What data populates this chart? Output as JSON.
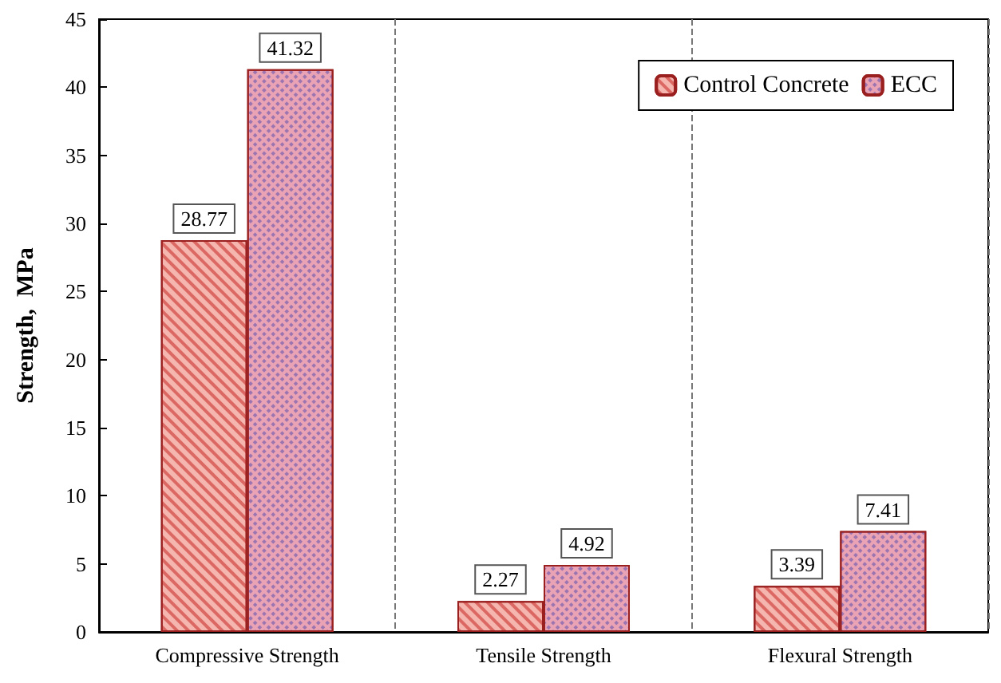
{
  "chart_data": {
    "type": "bar",
    "ylabel": "Strength,  MPa",
    "categories": [
      "Compressive Strength",
      "Tensile Strength",
      "Flexural Strength"
    ],
    "series": [
      {
        "name": "Control Concrete",
        "color": "#f4b6ae",
        "values": [
          28.77,
          2.27,
          3.39
        ]
      },
      {
        "name": "ECC",
        "color": "#e9a3b4",
        "values": [
          41.32,
          4.92,
          7.41
        ]
      }
    ],
    "ylim": [
      0,
      45
    ],
    "yticks": [
      0,
      5,
      10,
      15,
      20,
      25,
      30,
      35,
      40,
      45
    ],
    "grid": "x",
    "legend": "top right",
    "data_labels": true
  }
}
